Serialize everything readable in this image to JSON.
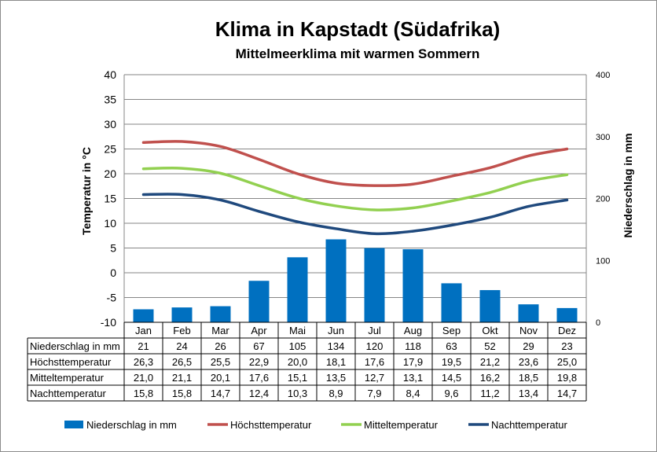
{
  "title": "Klima in Kapstadt (Südafrika)",
  "subtitle": "Mittelmeerklima mit warmen Sommern",
  "colors": {
    "precip": "#0070C0",
    "high": "#C0504D",
    "mean": "#92D050",
    "low": "#1F497D",
    "grid": "#868686",
    "table_border": "#000000"
  },
  "chart_data": {
    "type": "bar",
    "categories": [
      "Jan",
      "Feb",
      "Mar",
      "Apr",
      "Mai",
      "Jun",
      "Jul",
      "Aug",
      "Sep",
      "Okt",
      "Nov",
      "Dez"
    ],
    "y_left": {
      "label": "Temperatur in °C",
      "range": [
        -10,
        40
      ],
      "step": 5,
      "ticks": [
        "40",
        "35",
        "30",
        "25",
        "20",
        "15",
        "10",
        "5",
        "0",
        "-5",
        "-10"
      ]
    },
    "y_right": {
      "label": "Niederschlag in mm",
      "range": [
        0,
        400
      ],
      "step": 100,
      "ticks": [
        "400",
        "300",
        "200",
        "100",
        "0"
      ]
    },
    "grid": true,
    "legend_position": "bottom",
    "series": [
      {
        "name": "Niederschlag in mm",
        "type": "bar",
        "axis": "right",
        "values": [
          21,
          24,
          26,
          67,
          105,
          134,
          120,
          118,
          63,
          52,
          29,
          23
        ],
        "labels": [
          "21",
          "24",
          "26",
          "67",
          "105",
          "134",
          "120",
          "118",
          "63",
          "52",
          "29",
          "23"
        ]
      },
      {
        "name": "Höchsttemperatur",
        "type": "line",
        "axis": "left",
        "values": [
          26.3,
          26.5,
          25.5,
          22.9,
          20.0,
          18.1,
          17.6,
          17.9,
          19.5,
          21.2,
          23.6,
          25.0
        ],
        "labels": [
          "26,3",
          "26,5",
          "25,5",
          "22,9",
          "20,0",
          "18,1",
          "17,6",
          "17,9",
          "19,5",
          "21,2",
          "23,6",
          "25,0"
        ]
      },
      {
        "name": "Mitteltemperatur",
        "type": "line",
        "axis": "left",
        "values": [
          21.0,
          21.1,
          20.1,
          17.6,
          15.1,
          13.5,
          12.7,
          13.1,
          14.5,
          16.2,
          18.5,
          19.8
        ],
        "labels": [
          "21,0",
          "21,1",
          "20,1",
          "17,6",
          "15,1",
          "13,5",
          "12,7",
          "13,1",
          "14,5",
          "16,2",
          "18,5",
          "19,8"
        ]
      },
      {
        "name": "Nachttemperatur",
        "type": "line",
        "axis": "left",
        "values": [
          15.8,
          15.8,
          14.7,
          12.4,
          10.3,
          8.9,
          7.9,
          8.4,
          9.6,
          11.2,
          13.4,
          14.7
        ],
        "labels": [
          "15,8",
          "15,8",
          "14,7",
          "12,4",
          "10,3",
          "8,9",
          "7,9",
          "8,4",
          "9,6",
          "11,2",
          "13,4",
          "14,7"
        ]
      }
    ]
  }
}
